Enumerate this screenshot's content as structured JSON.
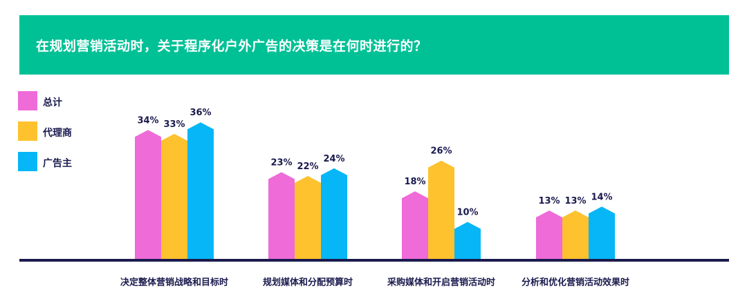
{
  "chart_data": {
    "type": "bar",
    "title": "在规划营销活动时，关于程序化户外广告的决策是在何时进行的？",
    "categories": [
      "决定整体营销战略和目标时",
      "规划媒体和分配预算时",
      "采购媒体和开启营销活动时",
      "分析和优化营销活动效果时"
    ],
    "series": [
      {
        "name": "总计",
        "values": [
          34,
          23,
          18,
          13
        ],
        "labels": [
          "34%",
          "23%",
          "18%",
          "13%"
        ],
        "color": "#ee6bd8"
      },
      {
        "name": "代理商",
        "values": [
          33,
          22,
          26,
          13
        ],
        "labels": [
          "33%",
          "22%",
          "26%",
          "13%"
        ],
        "color": "#fdc22e"
      },
      {
        "name": "广告主",
        "values": [
          36,
          24,
          10,
          14
        ],
        "labels": [
          "36%",
          "24%",
          "10%",
          "14%"
        ],
        "color": "#06b6f6"
      }
    ],
    "unit": "%",
    "grid": false,
    "legend_position": "left",
    "colors": {
      "header": "#00c196",
      "axis": "#1a1a4e",
      "text": "#1a1a4e"
    }
  }
}
